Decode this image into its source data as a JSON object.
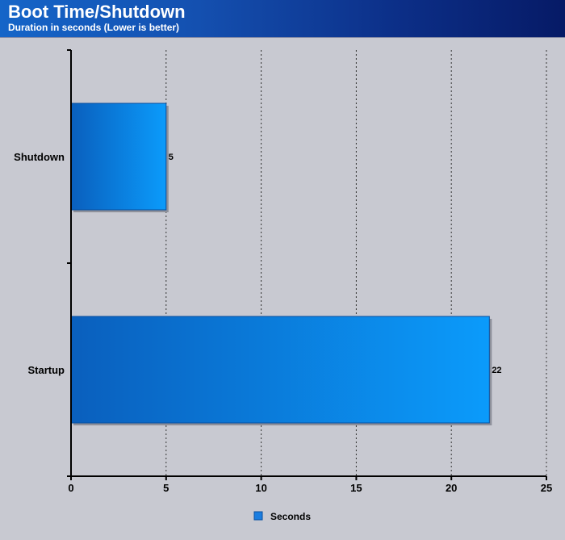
{
  "header": {
    "title": "Boot Time/Shutdown",
    "subtitle": "Duration in seconds (Lower is better)"
  },
  "colors": {
    "header_left": "#1565c8",
    "header_right": "#061a66",
    "background": "#c8c9d1",
    "bar_dark": "#0a5fbd",
    "bar_light": "#0b9bfb",
    "legend_swatch": "#1a7de0"
  },
  "chart_data": {
    "type": "bar",
    "orientation": "horizontal",
    "categories": [
      "Shutdown",
      "Startup"
    ],
    "series": [
      {
        "name": "Seconds",
        "values": [
          5,
          22
        ]
      }
    ],
    "xlim": [
      0,
      25
    ],
    "xticks": [
      0,
      5,
      10,
      15,
      20,
      25
    ],
    "grid": "vertical dotted",
    "legend": "bottom-center"
  }
}
